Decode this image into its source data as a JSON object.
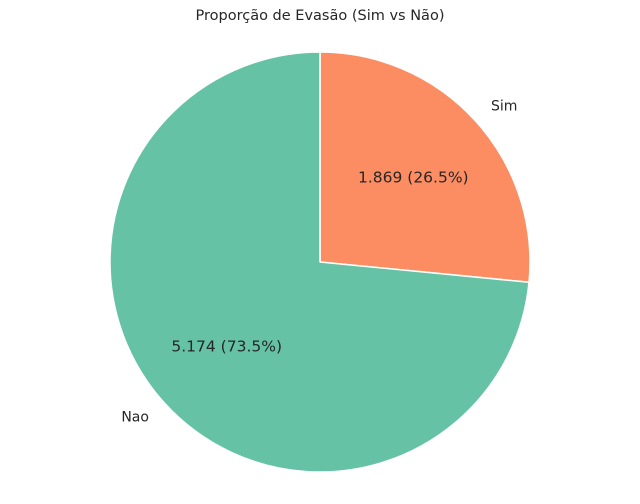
{
  "chart_data": {
    "type": "pie",
    "title": "Proporção de Evasão (Sim vs Não)",
    "categories": [
      "Sim",
      "Nao"
    ],
    "values": [
      1869,
      5174
    ],
    "value_labels": [
      "1.869",
      "5.174"
    ],
    "percent_labels": [
      "26.5%",
      "73.5%"
    ],
    "slice_labels": [
      "1.869 (26.5%)",
      "5.174 (73.5%)"
    ],
    "colors": [
      "#fc8d62",
      "#66c2a5"
    ],
    "edge_color": "#ffffff",
    "start_angle_deg": 90,
    "direction": "clockwise",
    "legend": "none"
  }
}
